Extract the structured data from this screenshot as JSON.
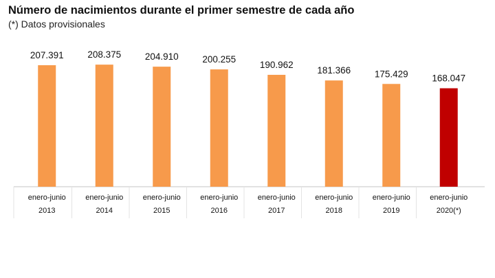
{
  "chart_data": {
    "type": "bar",
    "title": "Número de nacimientos durante el primer semestre de cada año",
    "subtitle": "(*) Datos provisionales",
    "categories": [
      [
        "enero-junio",
        "2013"
      ],
      [
        "enero-junio",
        "2014"
      ],
      [
        "enero-junio",
        "2015"
      ],
      [
        "enero-junio",
        "2016"
      ],
      [
        "enero-junio",
        "2017"
      ],
      [
        "enero-junio",
        "2018"
      ],
      [
        "enero-junio",
        "2019"
      ],
      [
        "enero-junio",
        "2020(*)"
      ]
    ],
    "values": [
      207391,
      208375,
      204910,
      200255,
      190962,
      181366,
      175429,
      168047
    ],
    "value_labels": [
      "207.391",
      "208.375",
      "204.910",
      "200.255",
      "190.962",
      "181.366",
      "175.429",
      "168.047"
    ],
    "colors": [
      "#f79a4b",
      "#f79a4b",
      "#f79a4b",
      "#f79a4b",
      "#f79a4b",
      "#f79a4b",
      "#f79a4b",
      "#c00000"
    ],
    "ylim": [
      0,
      210000
    ],
    "grid": false,
    "legend": "none"
  }
}
